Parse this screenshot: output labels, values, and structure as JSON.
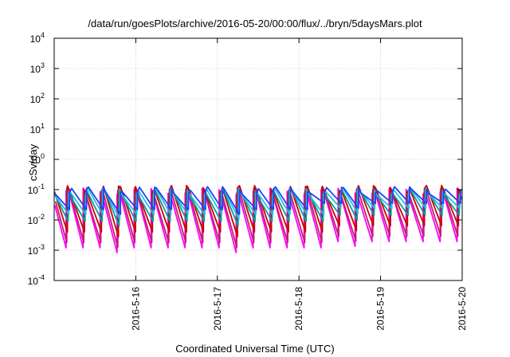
{
  "chart_data": {
    "type": "line",
    "title": "/data/run/goesPlots/archive/2016-05-20/00:00/flux/../bryn/5daysMars.plot",
    "xlabel": "Coordinated Universal Time (UTC)",
    "ylabel": "cSv/day",
    "xlim": [
      "2016-05-15T00:00",
      "2016-05-20T00:00"
    ],
    "ylim": [
      0.0001,
      10000
    ],
    "yscale": "log",
    "grid": true,
    "x_ticks": [
      "2016-5-16",
      "2016-5-17",
      "2016-5-18",
      "2016-5-19",
      "2016-5-20"
    ],
    "y_ticks": [
      {
        "value": 0.0001,
        "base": "10",
        "exp": "-4"
      },
      {
        "value": 0.001,
        "base": "10",
        "exp": "-3"
      },
      {
        "value": 0.01,
        "base": "10",
        "exp": "-2"
      },
      {
        "value": 0.1,
        "base": "10",
        "exp": "-1"
      },
      {
        "value": 1,
        "base": "10",
        "exp": "0"
      },
      {
        "value": 10,
        "base": "10",
        "exp": "1"
      },
      {
        "value": 100,
        "base": "10",
        "exp": "2"
      },
      {
        "value": 1000,
        "base": "10",
        "exp": "3"
      },
      {
        "value": 10000,
        "base": "10",
        "exp": "4"
      }
    ],
    "pattern": {
      "cycles_per_day": 4.8,
      "peak_near": 0.1,
      "trough_ranges": [
        0.002,
        0.03
      ]
    },
    "series": [
      {
        "color": "#ff00ff",
        "peak": 0.09,
        "trough": 0.0012
      },
      {
        "color": "#c0206a",
        "peak": 0.095,
        "trough": 0.0018
      },
      {
        "color": "#cc0000",
        "peak": 0.11,
        "trough": 0.004
      },
      {
        "color": "#00a0a0",
        "peak": 0.085,
        "trough": 0.009
      },
      {
        "color": "#20c0e0",
        "peak": 0.09,
        "trough": 0.015
      },
      {
        "color": "#2040ff",
        "peak": 0.1,
        "trough": 0.022
      }
    ]
  }
}
